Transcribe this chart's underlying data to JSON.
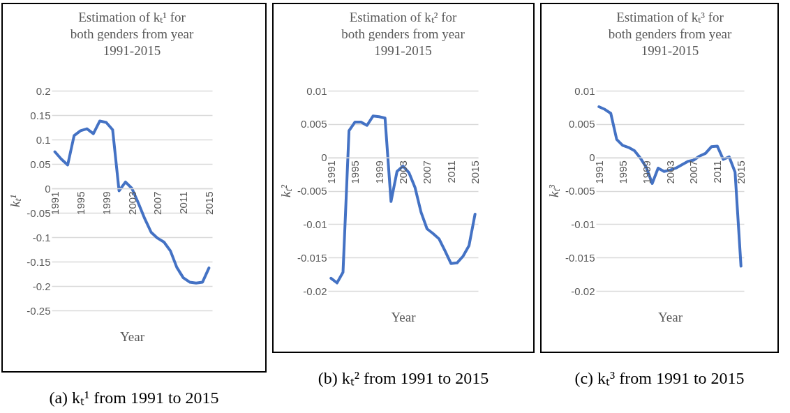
{
  "chart_data": [
    {
      "type": "line",
      "title": "Estimation of kₜ¹ for both genders from year 1991-2015",
      "xlabel": "Year",
      "ylabel": "kₜ¹",
      "categories": [
        "1991",
        null,
        null,
        null,
        "1995",
        null,
        null,
        null,
        "1999",
        null,
        null,
        null,
        "2003",
        null,
        null,
        null,
        "2007",
        null,
        null,
        null,
        "2011",
        null,
        null,
        null,
        "2015"
      ],
      "series": [
        {
          "color": "#4472c4",
          "values": [
            0.075,
            0.06,
            0.048,
            0.108,
            0.118,
            0.122,
            0.112,
            0.138,
            0.135,
            0.12,
            -0.005,
            0.013,
            0.0,
            -0.03,
            -0.062,
            -0.09,
            -0.102,
            -0.11,
            -0.128,
            -0.162,
            -0.183,
            -0.192,
            -0.194,
            -0.192,
            -0.163
          ]
        }
      ],
      "ylim": [
        -0.25,
        0.2
      ],
      "yticks": [
        -0.25,
        -0.2,
        -0.15,
        -0.1,
        -0.05,
        0,
        0.05,
        0.1,
        0.15,
        0.2
      ],
      "grid": "y",
      "annotations": [
        "(a) kₜ¹ from 1991 to 2015"
      ]
    },
    {
      "type": "line",
      "title": "Estimation of kₜ² for both genders from year 1991-2015",
      "xlabel": "Year",
      "ylabel": "kₜ²",
      "categories": [
        "1991",
        null,
        null,
        null,
        "1995",
        null,
        null,
        null,
        "1999",
        null,
        null,
        null,
        "2003",
        null,
        null,
        null,
        "2007",
        null,
        null,
        null,
        "2011",
        null,
        null,
        null,
        "2015"
      ],
      "series": [
        {
          "color": "#4472c4",
          "values": [
            -0.0181,
            -0.0188,
            -0.0172,
            0.004,
            0.0053,
            0.0053,
            0.0048,
            0.0062,
            0.0061,
            0.0059,
            -0.0066,
            -0.0021,
            -0.0013,
            -0.0023,
            -0.0045,
            -0.0082,
            -0.0107,
            -0.0114,
            -0.0122,
            -0.014,
            -0.0159,
            -0.0158,
            -0.0148,
            -0.0132,
            -0.0085
          ]
        }
      ],
      "ylim": [
        -0.02,
        0.01
      ],
      "yticks": [
        -0.02,
        -0.015,
        -0.01,
        -0.005,
        0,
        0.005,
        0.01
      ],
      "grid": "y",
      "annotations": [
        "(b) kₜ² from 1991 to 2015"
      ]
    },
    {
      "type": "line",
      "title": "Estimation of kₜ³ for both genders from year 1991-2015",
      "xlabel": "Year",
      "ylabel": "kₜ³",
      "categories": [
        "1991",
        null,
        null,
        null,
        "1995",
        null,
        null,
        null,
        "1999",
        null,
        null,
        null,
        "2003",
        null,
        null,
        null,
        "2007",
        null,
        null,
        null,
        "2011",
        null,
        null,
        null,
        "2015"
      ],
      "series": [
        {
          "color": "#4472c4",
          "values": [
            0.0076,
            0.0072,
            0.0066,
            0.0027,
            0.0018,
            0.0015,
            0.001,
            -0.0001,
            -0.0015,
            -0.0039,
            -0.0016,
            -0.0021,
            -0.0019,
            -0.0016,
            -0.0011,
            -0.0006,
            -0.0004,
            0.0002,
            0.0006,
            0.0016,
            0.0017,
            -0.0003,
            0.0001,
            -0.0022,
            -0.0163
          ]
        }
      ],
      "ylim": [
        -0.02,
        0.01
      ],
      "yticks": [
        -0.02,
        -0.015,
        -0.01,
        -0.005,
        0,
        0.005,
        0.01
      ],
      "grid": "y",
      "annotations": [
        "(c) kₜ³ from 1991 to 2015"
      ]
    }
  ]
}
